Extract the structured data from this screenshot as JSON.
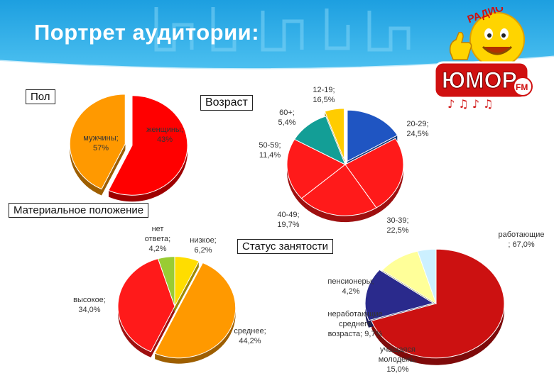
{
  "page": {
    "title": "Портрет аудитории:"
  },
  "logo": {
    "brand_text": "ЮМОР",
    "fm_text": "FM",
    "arc_text": "РАДИО"
  },
  "chart_data": [
    {
      "type": "pie",
      "title": "Пол",
      "slices": [
        {
          "name": "мужчины",
          "value": 57,
          "label": [
            "мужчины;",
            "57%"
          ],
          "color": "#ff0000"
        },
        {
          "name": "женщины",
          "value": 43,
          "label": [
            "женщины;",
            "43%"
          ],
          "color": "#ff9900"
        }
      ]
    },
    {
      "type": "pie",
      "title": "Возраст",
      "slices": [
        {
          "name": "12-19",
          "value": 16.5,
          "label": [
            "12-19;",
            "16,5%"
          ],
          "color": "#1f55c2"
        },
        {
          "name": "20-29",
          "value": 24.5,
          "label": [
            "20-29;",
            "24,5%"
          ],
          "color": "#ff1a1a"
        },
        {
          "name": "30-39",
          "value": 22.5,
          "label": [
            "30-39;",
            "22,5%"
          ],
          "color": "#ff1a1a"
        },
        {
          "name": "40-49",
          "value": 19.7,
          "label": [
            "40-49;",
            "19,7%"
          ],
          "color": "#ff1a1a"
        },
        {
          "name": "50-59",
          "value": 11.4,
          "label": [
            "50-59;",
            "11,4%"
          ],
          "color": "#139e96"
        },
        {
          "name": "60+",
          "value": 5.4,
          "label": [
            "60+;",
            "5,4%"
          ],
          "color": "#ffcc00"
        }
      ]
    },
    {
      "type": "pie",
      "title": "Материальное положение",
      "slices": [
        {
          "name": "низкое",
          "value": 6.2,
          "label": [
            "низкое;",
            "6,2%"
          ],
          "color": "#ffdd00"
        },
        {
          "name": "среднее",
          "value": 44.2,
          "label": [
            "среднее;",
            "44,2%"
          ],
          "color": "#ff9900"
        },
        {
          "name": "высокое",
          "value": 34.0,
          "label": [
            "высокое;",
            "34,0%"
          ],
          "color": "#ff1a1a"
        },
        {
          "name": "нет ответа",
          "value": 4.2,
          "label": [
            "нет",
            "ответа;",
            "4,2%"
          ],
          "color": "#99cc33"
        }
      ]
    },
    {
      "type": "pie",
      "title": "Статус занятости",
      "slices": [
        {
          "name": "работающие",
          "value": 67.0,
          "label": [
            "работающие",
            "; 67,0%"
          ],
          "color": "#cc1111"
        },
        {
          "name": "учащаяся молодежь",
          "value": 15.0,
          "label": [
            "учащаяся",
            "молодежь;",
            "15,0%"
          ],
          "color": "#2a2a8c"
        },
        {
          "name": "неработающие среднего возраста",
          "value": 9.7,
          "label": [
            "неработающие",
            "среднего",
            "возраста; 9,7%"
          ],
          "color": "#ffff99"
        },
        {
          "name": "пенсионеры",
          "value": 4.2,
          "label": [
            "пенсионеры;",
            "4,2%"
          ],
          "color": "#ccf0ff"
        }
      ]
    }
  ]
}
